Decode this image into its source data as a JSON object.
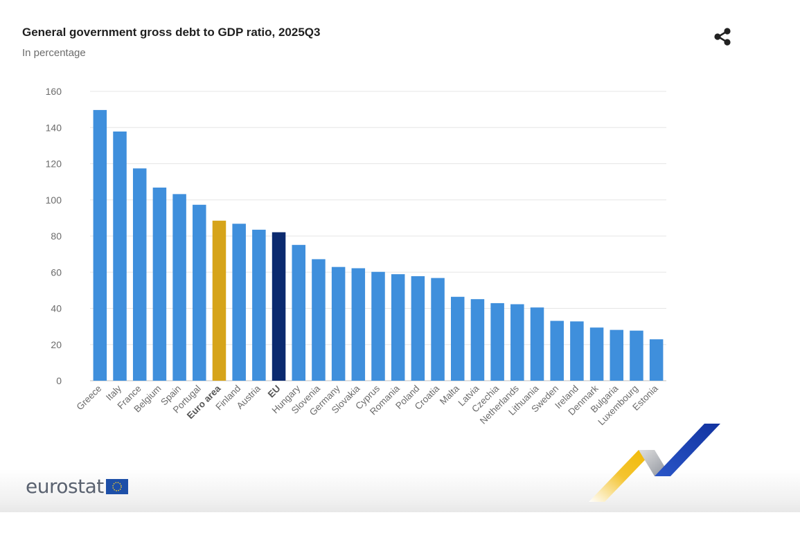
{
  "header": {
    "title": "General government gross debt to GDP ratio, 2025Q3",
    "subtitle": "In percentage",
    "share_icon": "share-icon"
  },
  "brand": {
    "logo_text": "eurostat",
    "logo_icon": "eu-flag-icon"
  },
  "colors": {
    "bar": "#3f8fdc",
    "euro_area": "#d6a41a",
    "eu": "#0b2a6f",
    "grid": "#e6e6e6",
    "axis": "#bfbfbf",
    "tick": "#6b6b6b"
  },
  "chart_data": {
    "type": "bar",
    "title": "General government gross debt to GDP ratio, 2025Q3",
    "subtitle": "In percentage",
    "xlabel": "",
    "ylabel": "",
    "ylim": [
      0,
      160
    ],
    "yticks": [
      0,
      20,
      40,
      60,
      80,
      100,
      120,
      140,
      160
    ],
    "grid": true,
    "categories": [
      "Greece",
      "Italy",
      "France",
      "Belgium",
      "Spain",
      "Portugal",
      "Euro area",
      "Finland",
      "Austria",
      "EU",
      "Hungary",
      "Slovenia",
      "Germany",
      "Slovakia",
      "Cyprus",
      "Romania",
      "Poland",
      "Croatia",
      "Malta",
      "Latvia",
      "Czechia",
      "Netherlands",
      "Lithuania",
      "Sweden",
      "Ireland",
      "Denmark",
      "Bulgaria",
      "Luxembourg",
      "Estonia"
    ],
    "values": [
      149.7,
      137.8,
      117.4,
      106.8,
      103.2,
      97.3,
      88.5,
      86.8,
      83.5,
      82.1,
      75.1,
      67.2,
      62.9,
      62.2,
      60.2,
      58.9,
      57.8,
      56.8,
      46.4,
      45.1,
      42.9,
      42.3,
      40.5,
      33.1,
      32.8,
      29.4,
      28.1,
      27.7,
      22.9
    ],
    "highlights": {
      "Euro area": "euro_area",
      "EU": "eu"
    }
  }
}
